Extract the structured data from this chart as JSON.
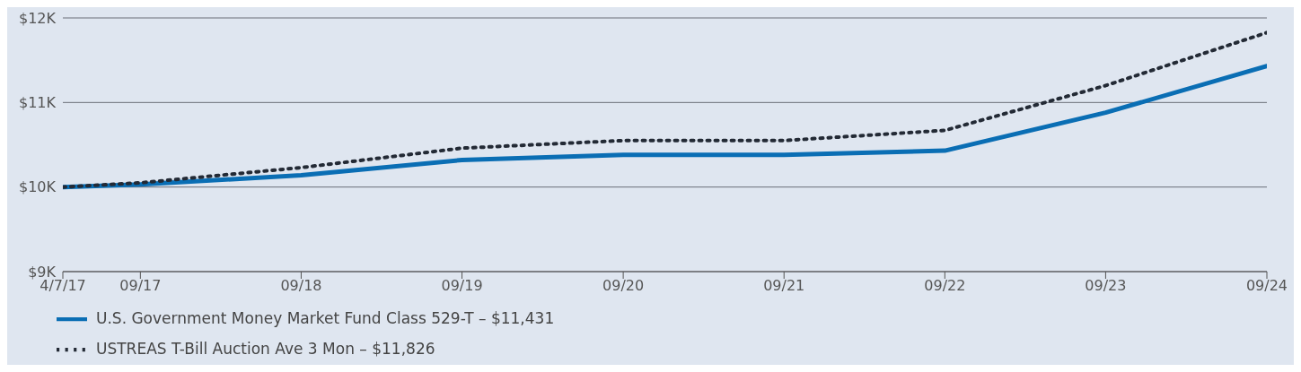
{
  "chart_data": {
    "type": "line",
    "x": [
      "2017-04-07",
      "2017-09-30",
      "2018-09-30",
      "2019-09-30",
      "2020-09-30",
      "2021-09-30",
      "2022-09-30",
      "2023-09-30",
      "2024-09-30"
    ],
    "series": [
      {
        "name": "U.S. Government Money Market Fund Class 529-T – $11,431",
        "color": "#0a6eb4",
        "line_style": "solid",
        "values": [
          10000,
          10030,
          10140,
          10320,
          10380,
          10380,
          10430,
          10880,
          11431
        ]
      },
      {
        "name": "USTREAS T-Bill Auction Ave 3 Mon – $11,826",
        "color": "#232a35",
        "line_style": "dotted",
        "values": [
          10000,
          10050,
          10230,
          10460,
          10550,
          10550,
          10670,
          11200,
          11826
        ]
      }
    ],
    "xlim": [
      "2017-04-07",
      "2024-09-30"
    ],
    "xticks": [
      {
        "value": "2017-04-07",
        "label": "4/7/17"
      },
      {
        "value": "2017-09-30",
        "label": "09/17"
      },
      {
        "value": "2018-09-30",
        "label": "09/18"
      },
      {
        "value": "2019-09-30",
        "label": "09/19"
      },
      {
        "value": "2020-09-30",
        "label": "09/20"
      },
      {
        "value": "2021-09-30",
        "label": "09/21"
      },
      {
        "value": "2022-09-30",
        "label": "09/22"
      },
      {
        "value": "2023-09-30",
        "label": "09/23"
      },
      {
        "value": "2024-09-30",
        "label": "09/24"
      }
    ],
    "ylim": [
      9000,
      12000
    ],
    "yticks": [
      {
        "value": 9000,
        "label": "$9K"
      },
      {
        "value": 10000,
        "label": "$10K"
      },
      {
        "value": 11000,
        "label": "$11K"
      },
      {
        "value": 12000,
        "label": "$12K"
      }
    ],
    "grid": "y",
    "legend": "bottom"
  }
}
